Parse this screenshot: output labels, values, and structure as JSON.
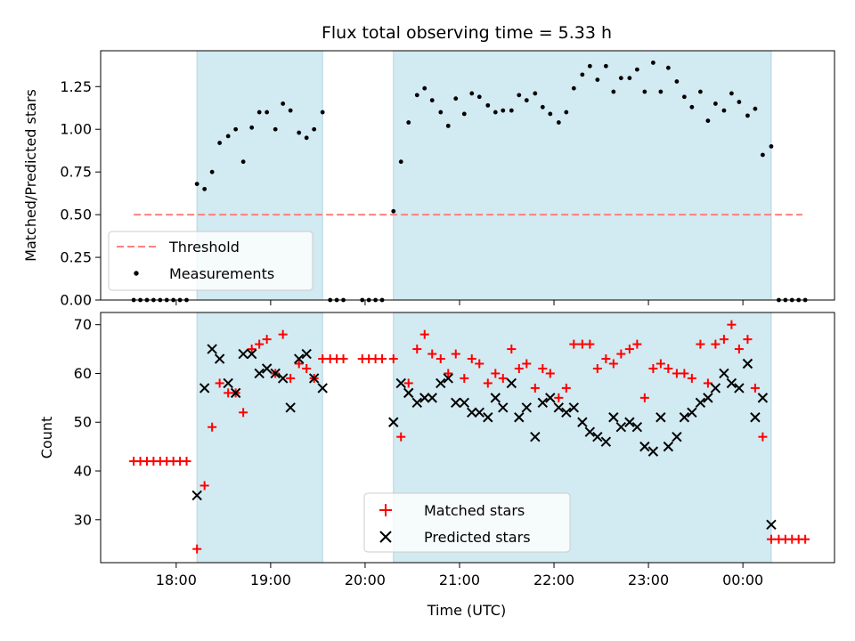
{
  "chart_data": {
    "title": "Flux total observing time = 5.33 h",
    "xlabel": "Time (UTC)",
    "x_unit": "hours (UTC, continuous past midnight)",
    "xlim": [
      17.2,
      24.97
    ],
    "x_ticks": [
      {
        "value": 18,
        "label": "18:00"
      },
      {
        "value": 19,
        "label": "19:00"
      },
      {
        "value": 20,
        "label": "20:00"
      },
      {
        "value": 21,
        "label": "21:00"
      },
      {
        "value": 22,
        "label": "22:00"
      },
      {
        "value": 23,
        "label": "23:00"
      },
      {
        "value": 24,
        "label": "00:00"
      }
    ],
    "shaded_spans": [
      [
        18.22,
        19.55
      ],
      [
        20.3,
        24.3
      ]
    ],
    "shade_color": "#add8e6",
    "panels": [
      {
        "type": "scatter",
        "ylabel": "Matched/Predicted stars",
        "ylim": [
          0,
          1.46
        ],
        "y_ticks": [
          "0.00",
          "0.25",
          "0.50",
          "0.75",
          "1.00",
          "1.25"
        ],
        "y_tick_values": [
          0,
          0.25,
          0.5,
          0.75,
          1.0,
          1.25
        ],
        "legend_position": "lower-left",
        "threshold": {
          "name": "Threshold",
          "value": 0.5,
          "x_range": [
            17.55,
            24.63
          ],
          "color": "#ff8080"
        },
        "measurements": {
          "name": "Measurements",
          "color": "#000000",
          "points": [
            [
              17.55,
              0
            ],
            [
              17.62,
              0
            ],
            [
              17.69,
              0
            ],
            [
              17.76,
              0
            ],
            [
              17.83,
              0
            ],
            [
              17.9,
              0
            ],
            [
              17.97,
              0
            ],
            [
              18.04,
              0
            ],
            [
              18.11,
              0
            ],
            [
              18.22,
              0.68
            ],
            [
              18.3,
              0.65
            ],
            [
              18.38,
              0.75
            ],
            [
              18.46,
              0.92
            ],
            [
              18.55,
              0.96
            ],
            [
              18.63,
              1.0
            ],
            [
              18.71,
              0.81
            ],
            [
              18.8,
              1.01
            ],
            [
              18.88,
              1.1
            ],
            [
              18.96,
              1.1
            ],
            [
              19.05,
              1.0
            ],
            [
              19.13,
              1.15
            ],
            [
              19.21,
              1.11
            ],
            [
              19.3,
              0.98
            ],
            [
              19.38,
              0.95
            ],
            [
              19.46,
              1.0
            ],
            [
              19.55,
              1.1
            ],
            [
              19.63,
              0
            ],
            [
              19.7,
              0
            ],
            [
              19.77,
              0
            ],
            [
              19.97,
              0
            ],
            [
              20.04,
              0
            ],
            [
              20.11,
              0
            ],
            [
              20.18,
              0
            ],
            [
              20.3,
              0.52
            ],
            [
              20.38,
              0.81
            ],
            [
              20.46,
              1.04
            ],
            [
              20.55,
              1.2
            ],
            [
              20.63,
              1.24
            ],
            [
              20.71,
              1.17
            ],
            [
              20.8,
              1.1
            ],
            [
              20.88,
              1.02
            ],
            [
              20.96,
              1.18
            ],
            [
              21.05,
              1.09
            ],
            [
              21.13,
              1.21
            ],
            [
              21.21,
              1.19
            ],
            [
              21.3,
              1.14
            ],
            [
              21.38,
              1.1
            ],
            [
              21.46,
              1.11
            ],
            [
              21.55,
              1.11
            ],
            [
              21.63,
              1.2
            ],
            [
              21.71,
              1.17
            ],
            [
              21.8,
              1.21
            ],
            [
              21.88,
              1.13
            ],
            [
              21.96,
              1.09
            ],
            [
              22.05,
              1.04
            ],
            [
              22.13,
              1.1
            ],
            [
              22.21,
              1.24
            ],
            [
              22.3,
              1.32
            ],
            [
              22.38,
              1.37
            ],
            [
              22.46,
              1.29
            ],
            [
              22.55,
              1.37
            ],
            [
              22.63,
              1.22
            ],
            [
              22.71,
              1.3
            ],
            [
              22.8,
              1.3
            ],
            [
              22.88,
              1.35
            ],
            [
              22.96,
              1.22
            ],
            [
              23.05,
              1.39
            ],
            [
              23.13,
              1.22
            ],
            [
              23.21,
              1.36
            ],
            [
              23.3,
              1.28
            ],
            [
              23.38,
              1.19
            ],
            [
              23.46,
              1.13
            ],
            [
              23.55,
              1.22
            ],
            [
              23.63,
              1.05
            ],
            [
              23.71,
              1.15
            ],
            [
              23.8,
              1.11
            ],
            [
              23.88,
              1.21
            ],
            [
              23.96,
              1.16
            ],
            [
              24.05,
              1.08
            ],
            [
              24.13,
              1.12
            ],
            [
              24.21,
              0.85
            ],
            [
              24.3,
              0.9
            ],
            [
              24.38,
              0
            ],
            [
              24.45,
              0
            ],
            [
              24.52,
              0
            ],
            [
              24.59,
              0
            ],
            [
              24.66,
              0
            ]
          ]
        }
      },
      {
        "type": "scatter",
        "ylabel": "Count",
        "ylim": [
          21.2,
          72.5
        ],
        "y_ticks": [
          "30",
          "40",
          "50",
          "60",
          "70"
        ],
        "y_tick_values": [
          30,
          40,
          50,
          60,
          70
        ],
        "legend_position": "lower-center",
        "matched": {
          "name": "Matched stars",
          "color": "#ff0000",
          "points": [
            [
              17.55,
              42
            ],
            [
              17.62,
              42
            ],
            [
              17.69,
              42
            ],
            [
              17.76,
              42
            ],
            [
              17.83,
              42
            ],
            [
              17.9,
              42
            ],
            [
              17.97,
              42
            ],
            [
              18.04,
              42
            ],
            [
              18.11,
              42
            ],
            [
              18.22,
              24
            ],
            [
              18.3,
              37
            ],
            [
              18.38,
              49
            ],
            [
              18.46,
              58
            ],
            [
              18.55,
              56
            ],
            [
              18.63,
              56
            ],
            [
              18.71,
              52
            ],
            [
              18.8,
              65
            ],
            [
              18.88,
              66
            ],
            [
              18.96,
              67
            ],
            [
              19.05,
              60
            ],
            [
              19.13,
              68
            ],
            [
              19.21,
              59
            ],
            [
              19.3,
              62
            ],
            [
              19.38,
              61
            ],
            [
              19.46,
              59
            ],
            [
              19.55,
              63
            ],
            [
              19.63,
              63
            ],
            [
              19.7,
              63
            ],
            [
              19.77,
              63
            ],
            [
              19.97,
              63
            ],
            [
              20.04,
              63
            ],
            [
              20.11,
              63
            ],
            [
              20.18,
              63
            ],
            [
              20.3,
              63
            ],
            [
              20.38,
              47
            ],
            [
              20.46,
              58
            ],
            [
              20.55,
              65
            ],
            [
              20.63,
              68
            ],
            [
              20.71,
              64
            ],
            [
              20.8,
              63
            ],
            [
              20.88,
              60
            ],
            [
              20.96,
              64
            ],
            [
              21.05,
              59
            ],
            [
              21.13,
              63
            ],
            [
              21.21,
              62
            ],
            [
              21.3,
              58
            ],
            [
              21.38,
              60
            ],
            [
              21.46,
              59
            ],
            [
              21.55,
              65
            ],
            [
              21.63,
              61
            ],
            [
              21.71,
              62
            ],
            [
              21.8,
              57
            ],
            [
              21.88,
              61
            ],
            [
              21.96,
              60
            ],
            [
              22.05,
              55
            ],
            [
              22.13,
              57
            ],
            [
              22.21,
              66
            ],
            [
              22.3,
              66
            ],
            [
              22.38,
              66
            ],
            [
              22.46,
              61
            ],
            [
              22.55,
              63
            ],
            [
              22.63,
              62
            ],
            [
              22.71,
              64
            ],
            [
              22.8,
              65
            ],
            [
              22.88,
              66
            ],
            [
              22.96,
              55
            ],
            [
              23.05,
              61
            ],
            [
              23.13,
              62
            ],
            [
              23.21,
              61
            ],
            [
              23.3,
              60
            ],
            [
              23.38,
              60
            ],
            [
              23.46,
              59
            ],
            [
              23.55,
              66
            ],
            [
              23.63,
              58
            ],
            [
              23.71,
              66
            ],
            [
              23.8,
              67
            ],
            [
              23.88,
              70
            ],
            [
              23.96,
              65
            ],
            [
              24.05,
              67
            ],
            [
              24.13,
              57
            ],
            [
              24.21,
              47
            ],
            [
              24.3,
              26
            ],
            [
              24.38,
              26
            ],
            [
              24.45,
              26
            ],
            [
              24.52,
              26
            ],
            [
              24.59,
              26
            ],
            [
              24.66,
              26
            ]
          ]
        },
        "predicted": {
          "name": "Predicted stars",
          "color": "#000000",
          "points": [
            [
              18.22,
              35
            ],
            [
              18.3,
              57
            ],
            [
              18.38,
              65
            ],
            [
              18.46,
              63
            ],
            [
              18.55,
              58
            ],
            [
              18.63,
              56
            ],
            [
              18.71,
              64
            ],
            [
              18.8,
              64
            ],
            [
              18.88,
              60
            ],
            [
              18.96,
              61
            ],
            [
              19.05,
              60
            ],
            [
              19.13,
              59
            ],
            [
              19.21,
              53
            ],
            [
              19.3,
              63
            ],
            [
              19.38,
              64
            ],
            [
              19.46,
              59
            ],
            [
              19.55,
              57
            ],
            [
              20.3,
              50
            ],
            [
              20.38,
              58
            ],
            [
              20.46,
              56
            ],
            [
              20.55,
              54
            ],
            [
              20.63,
              55
            ],
            [
              20.71,
              55
            ],
            [
              20.8,
              58
            ],
            [
              20.88,
              59
            ],
            [
              20.96,
              54
            ],
            [
              21.05,
              54
            ],
            [
              21.13,
              52
            ],
            [
              21.21,
              52
            ],
            [
              21.3,
              51
            ],
            [
              21.38,
              55
            ],
            [
              21.46,
              53
            ],
            [
              21.55,
              58
            ],
            [
              21.63,
              51
            ],
            [
              21.71,
              53
            ],
            [
              21.8,
              47
            ],
            [
              21.88,
              54
            ],
            [
              21.96,
              55
            ],
            [
              22.05,
              53
            ],
            [
              22.13,
              52
            ],
            [
              22.21,
              53
            ],
            [
              22.3,
              50
            ],
            [
              22.38,
              48
            ],
            [
              22.46,
              47
            ],
            [
              22.55,
              46
            ],
            [
              22.63,
              51
            ],
            [
              22.71,
              49
            ],
            [
              22.8,
              50
            ],
            [
              22.88,
              49
            ],
            [
              22.96,
              45
            ],
            [
              23.05,
              44
            ],
            [
              23.13,
              51
            ],
            [
              23.21,
              45
            ],
            [
              23.3,
              47
            ],
            [
              23.38,
              51
            ],
            [
              23.46,
              52
            ],
            [
              23.55,
              54
            ],
            [
              23.63,
              55
            ],
            [
              23.71,
              57
            ],
            [
              23.8,
              60
            ],
            [
              23.88,
              58
            ],
            [
              23.96,
              57
            ],
            [
              24.05,
              62
            ],
            [
              24.13,
              51
            ],
            [
              24.21,
              55
            ],
            [
              24.3,
              29
            ]
          ]
        }
      }
    ]
  }
}
